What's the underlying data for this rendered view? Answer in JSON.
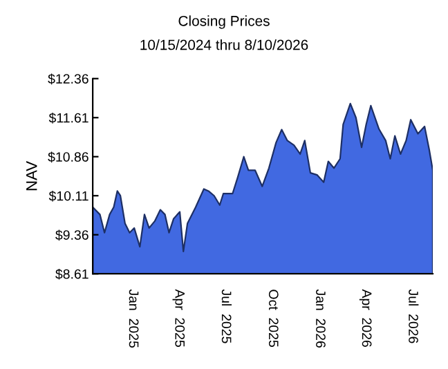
{
  "chart_data": {
    "type": "area",
    "title": "Closing Prices",
    "subtitle": "10/15/2024 thru 8/10/2026",
    "ylabel": "NAV",
    "x": [
      "2024-10-15",
      "2024-10-29",
      "2024-11-07",
      "2024-11-17",
      "2024-11-25",
      "2024-12-02",
      "2024-12-08",
      "2024-12-17",
      "2024-12-26",
      "2025-01-04",
      "2025-01-15",
      "2025-01-24",
      "2025-02-02",
      "2025-02-13",
      "2025-02-24",
      "2025-03-05",
      "2025-03-13",
      "2025-03-22",
      "2025-04-03",
      "2025-04-10",
      "2025-04-18",
      "2025-05-04",
      "2025-05-20",
      "2025-05-29",
      "2025-06-09",
      "2025-06-20",
      "2025-06-27",
      "2025-07-15",
      "2025-07-25",
      "2025-08-06",
      "2025-08-15",
      "2025-08-28",
      "2025-09-11",
      "2025-09-24",
      "2025-10-08",
      "2025-10-19",
      "2025-10-30",
      "2025-11-12",
      "2025-11-24",
      "2025-12-03",
      "2025-12-14",
      "2025-12-27",
      "2026-01-09",
      "2026-01-18",
      "2026-01-29",
      "2026-02-10",
      "2026-02-16",
      "2026-03-02",
      "2026-03-13",
      "2026-03-24",
      "2026-04-02",
      "2026-04-11",
      "2026-04-27",
      "2026-05-10",
      "2026-05-19",
      "2026-05-28",
      "2026-06-08",
      "2026-06-19",
      "2026-06-28",
      "2026-07-12",
      "2026-07-25",
      "2026-08-03",
      "2026-08-10"
    ],
    "series": [
      {
        "color": "#4169e1",
        "values": [
          9.89,
          9.75,
          9.4,
          9.75,
          9.89,
          10.2,
          10.11,
          9.58,
          9.4,
          9.49,
          9.13,
          9.75,
          9.49,
          9.62,
          9.84,
          9.75,
          9.4,
          9.67,
          9.8,
          9.04,
          9.58,
          9.89,
          10.24,
          10.2,
          10.11,
          9.93,
          10.15,
          10.15,
          10.46,
          10.86,
          10.6,
          10.6,
          10.29,
          10.64,
          11.13,
          11.38,
          11.17,
          11.08,
          10.91,
          11.17,
          10.55,
          10.51,
          10.37,
          10.77,
          10.64,
          10.82,
          11.48,
          11.88,
          11.61,
          11.04,
          11.48,
          11.84,
          11.39,
          11.17,
          10.82,
          11.26,
          10.91,
          11.17,
          11.57,
          11.3,
          11.44,
          11.0,
          10.6
        ]
      }
    ],
    "xlim": [
      "2024-10-15",
      "2026-08-10"
    ],
    "xticks": [
      {
        "value": "2025-01-01",
        "label": "Jan  2025"
      },
      {
        "value": "2025-04-01",
        "label": "Apr  2025"
      },
      {
        "value": "2025-07-01",
        "label": "Jul  2025"
      },
      {
        "value": "2025-10-01",
        "label": "Oct  2025"
      },
      {
        "value": "2026-01-01",
        "label": "Jan  2026"
      },
      {
        "value": "2026-04-01",
        "label": "Apr  2026"
      },
      {
        "value": "2026-07-01",
        "label": "Jul  2026"
      }
    ],
    "ylim": [
      8.61,
      12.36
    ],
    "yticks": [
      {
        "value": 8.61,
        "label": "$8.61"
      },
      {
        "value": 9.36,
        "label": "$9.36"
      },
      {
        "value": 10.11,
        "label": "$10.11"
      },
      {
        "value": 10.86,
        "label": "$10.86"
      },
      {
        "value": 11.61,
        "label": "$11.61"
      },
      {
        "value": 12.36,
        "label": "$12.36"
      }
    ],
    "grid": false,
    "legend": false
  }
}
